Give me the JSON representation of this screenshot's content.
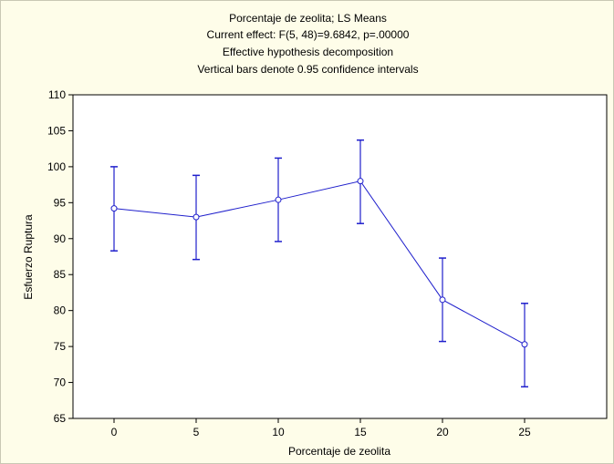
{
  "chart_data": {
    "type": "line",
    "title_lines": [
      "Porcentaje de zeolita; LS Means",
      "Current effect: F(5, 48)=9.6842, p=.00000",
      "Effective hypothesis decomposition",
      "Vertical bars denote 0.95 confidence intervals"
    ],
    "xlabel": "Porcentaje de zeolita",
    "ylabel": "Esfuerzo Ruptura",
    "categories": [
      "0",
      "5",
      "10",
      "15",
      "20",
      "25"
    ],
    "y_ticks": [
      "65",
      "70",
      "75",
      "80",
      "85",
      "90",
      "95",
      "100",
      "105",
      "110"
    ],
    "ylim": [
      65,
      110
    ],
    "series": [
      {
        "values": [
          94.2,
          93.0,
          95.4,
          98.0,
          81.5,
          75.3
        ],
        "ci_low": [
          88.3,
          87.1,
          89.6,
          92.1,
          75.7,
          69.4
        ],
        "ci_high": [
          100.0,
          98.8,
          101.2,
          103.7,
          87.3,
          81.0
        ]
      }
    ],
    "grid": false,
    "legend": "none",
    "colors": {
      "series": "#1f1fcc",
      "background": "#fefde9",
      "plot_background": "#ffffff"
    }
  }
}
